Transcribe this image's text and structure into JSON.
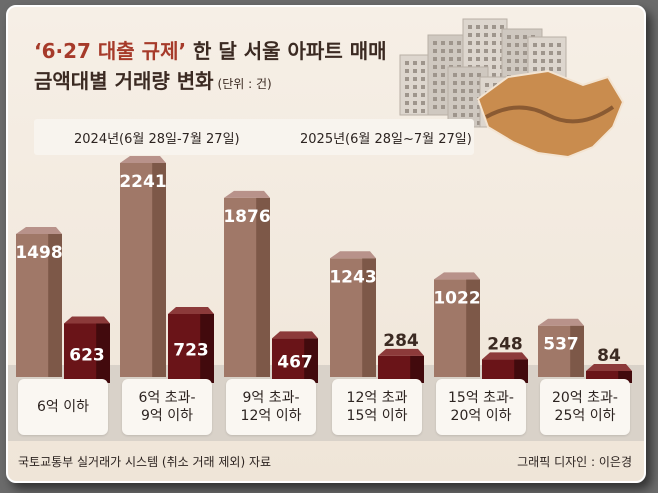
{
  "title": {
    "highlight": "‘6·27 대출 규제’",
    "rest": " 한 달 서울 아파트 매매",
    "line2": "금액대별 거래량 변화",
    "unit": "(단위 : 건)"
  },
  "legend": [
    "2024년(6월 28일-7월 27일)",
    "2025년(6월 28일~7월 27일)"
  ],
  "source": "국토교통부 실거래가 시스템 (취소 거래 제외) 자료",
  "credit": "그래픽 디자인 : 이은경",
  "colors": {
    "series2024": "#a07868",
    "series2024_dark": "#7d5848",
    "series2025": "#6a1418",
    "series2025_dark": "#420a0d",
    "background": "#f3ebe0"
  },
  "chart_data": {
    "type": "bar",
    "categories": [
      "6억 이하",
      "6억 초과-\n9억 이하",
      "9억 초과-\n12억 이하",
      "12억 초과\n15억 이하",
      "15억 초과-\n20억 이하",
      "20억 초과-\n25억 이하"
    ],
    "series": [
      {
        "name": "2024년(6월 28일-7월 27일)",
        "values": [
          1498,
          2241,
          1876,
          1243,
          1022,
          537
        ]
      },
      {
        "name": "2025년(6월 28일~7월 27일)",
        "values": [
          623,
          723,
          467,
          284,
          248,
          84
        ]
      }
    ],
    "ylim": [
      0,
      2241
    ]
  }
}
